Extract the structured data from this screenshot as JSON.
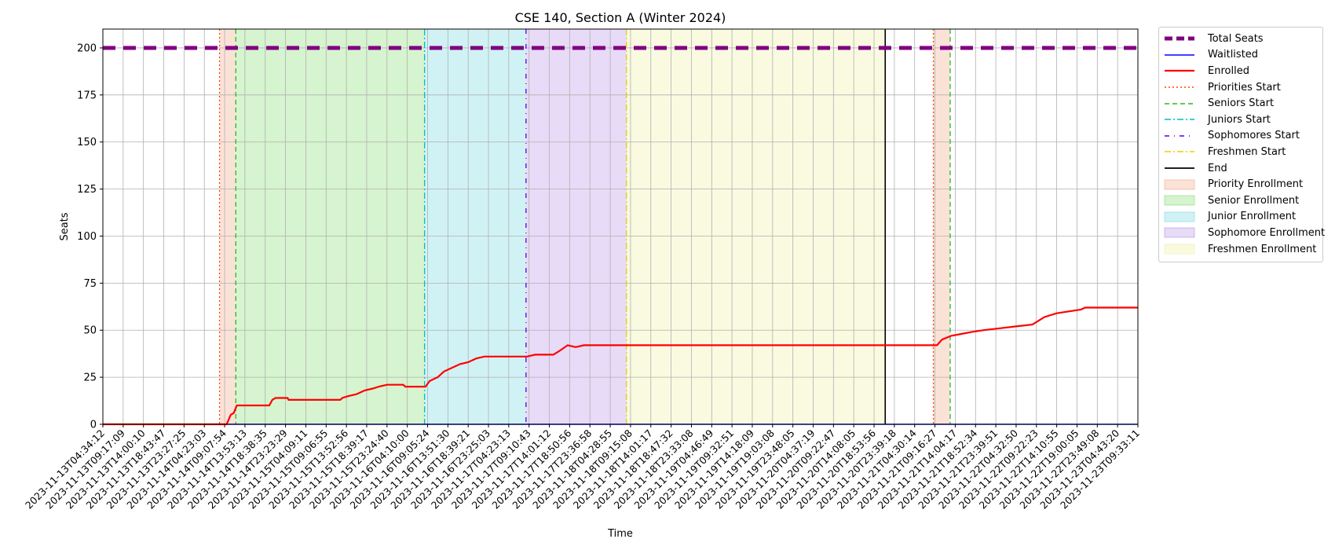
{
  "chart_data": {
    "type": "line",
    "title": "CSE 140, Section A (Winter 2024)",
    "xlabel": "Time",
    "ylabel": "Seats",
    "ylim": [
      0,
      210
    ],
    "yticks": [
      0,
      25,
      50,
      75,
      100,
      125,
      150,
      175,
      200
    ],
    "grid": true,
    "legend_position": "outside-right",
    "xticks": [
      "2023-11-13T04:34:12",
      "2023-11-13T09:17:09",
      "2023-11-13T14:00:10",
      "2023-11-13T18:43:47",
      "2023-11-13T23:27:25",
      "2023-11-14T04:23:03",
      "2023-11-14T09:07:54",
      "2023-11-14T13:53:13",
      "2023-11-14T18:38:35",
      "2023-11-14T23:23:29",
      "2023-11-15T04:09:11",
      "2023-11-15T09:06:55",
      "2023-11-15T13:52:56",
      "2023-11-15T18:39:17",
      "2023-11-15T23:24:40",
      "2023-11-16T04:10:00",
      "2023-11-16T09:05:24",
      "2023-11-16T13:51:30",
      "2023-11-16T18:39:21",
      "2023-11-16T23:25:03",
      "2023-11-17T04:23:13",
      "2023-11-17T09:10:43",
      "2023-11-17T14:01:12",
      "2023-11-17T18:50:56",
      "2023-11-17T23:36:58",
      "2023-11-18T04:28:55",
      "2023-11-18T09:15:08",
      "2023-11-18T14:01:17",
      "2023-11-18T18:47:32",
      "2023-11-18T23:33:08",
      "2023-11-19T04:46:49",
      "2023-11-19T09:32:51",
      "2023-11-19T14:18:09",
      "2023-11-19T19:03:08",
      "2023-11-19T23:48:05",
      "2023-11-20T04:37:19",
      "2023-11-20T09:22:47",
      "2023-11-20T14:08:05",
      "2023-11-20T18:53:56",
      "2023-11-20T23:39:18",
      "2023-11-21T04:30:14",
      "2023-11-21T09:16:27",
      "2023-11-21T14:04:17",
      "2023-11-21T18:52:34",
      "2023-11-21T23:39:51",
      "2023-11-22T04:32:50",
      "2023-11-22T09:22:23",
      "2023-11-22T14:10:55",
      "2023-11-22T19:00:05",
      "2023-11-22T23:49:08",
      "2023-11-23T04:43:20",
      "2023-11-23T09:33:11"
    ],
    "series": [
      {
        "name": "Total Seats",
        "color": "#800080",
        "style": "dashed",
        "points": [
          [
            0,
            200
          ],
          [
            51,
            200
          ]
        ]
      },
      {
        "name": "Waitlisted",
        "color": "#0000ff",
        "style": "solid",
        "points": [
          [
            0,
            0
          ],
          [
            51,
            0
          ]
        ]
      },
      {
        "name": "Enrolled",
        "color": "#ff0000",
        "style": "solid",
        "points": [
          [
            0,
            0
          ],
          [
            6.1,
            0
          ],
          [
            6.3,
            5
          ],
          [
            6.45,
            6
          ],
          [
            6.6,
            10
          ],
          [
            8.2,
            10
          ],
          [
            8.35,
            13
          ],
          [
            8.5,
            14
          ],
          [
            9.1,
            14
          ],
          [
            9.15,
            13
          ],
          [
            11.7,
            13
          ],
          [
            11.8,
            14
          ],
          [
            12.1,
            15
          ],
          [
            12.5,
            16
          ],
          [
            12.9,
            18
          ],
          [
            13.3,
            19
          ],
          [
            13.6,
            20
          ],
          [
            14.0,
            21
          ],
          [
            14.8,
            21
          ],
          [
            14.9,
            20
          ],
          [
            15.9,
            20
          ],
          [
            16.1,
            23
          ],
          [
            16.5,
            25
          ],
          [
            16.8,
            28
          ],
          [
            17.2,
            30
          ],
          [
            17.6,
            32
          ],
          [
            18.0,
            33
          ],
          [
            18.4,
            35
          ],
          [
            18.8,
            36
          ],
          [
            20.9,
            36
          ],
          [
            21.3,
            37
          ],
          [
            22.2,
            37
          ],
          [
            22.5,
            39
          ],
          [
            22.9,
            42
          ],
          [
            23.3,
            41
          ],
          [
            23.7,
            42
          ],
          [
            41.1,
            42
          ],
          [
            41.35,
            45
          ],
          [
            41.8,
            47
          ],
          [
            42.3,
            48
          ],
          [
            42.8,
            49
          ],
          [
            43.4,
            50
          ],
          [
            44.2,
            51
          ],
          [
            45.0,
            52
          ],
          [
            45.8,
            53
          ],
          [
            46.4,
            57
          ],
          [
            47.0,
            59
          ],
          [
            47.6,
            60
          ],
          [
            48.2,
            61
          ],
          [
            48.4,
            62
          ],
          [
            51,
            62
          ]
        ]
      }
    ],
    "phase_markers": [
      {
        "name": "Priorities Start",
        "color": "#ff4500",
        "style": "dotted",
        "x": [
          5.75,
          40.92
        ]
      },
      {
        "name": "Seniors Start",
        "color": "#22bb22",
        "style": "dashed",
        "x": [
          6.55,
          41.75
        ]
      },
      {
        "name": "Juniors Start",
        "color": "#00bfbf",
        "style": "dashdot",
        "x": [
          15.85
        ]
      },
      {
        "name": "Sophomores Start",
        "color": "#5500dd",
        "style": "loose-dashdot",
        "x": [
          20.85
        ]
      },
      {
        "name": "Freshmen Start",
        "color": "#e6d000",
        "style": "dashdot",
        "x": [
          25.8
        ]
      },
      {
        "name": "End",
        "color": "#000000",
        "style": "solid",
        "x": [
          38.55
        ]
      }
    ],
    "phase_spans": [
      {
        "name": "Priority Enrollment",
        "color": "#f4a582",
        "ranges": [
          [
            5.75,
            6.55
          ],
          [
            40.92,
            41.75
          ]
        ]
      },
      {
        "name": "Senior Enrollment",
        "color": "#7fdc6a",
        "ranges": [
          [
            6.55,
            15.85
          ]
        ]
      },
      {
        "name": "Junior Enrollment",
        "color": "#6fd8df",
        "ranges": [
          [
            15.85,
            20.85
          ]
        ]
      },
      {
        "name": "Sophomore Enrollment",
        "color": "#b48ee6",
        "ranges": [
          [
            20.85,
            25.8
          ]
        ]
      },
      {
        "name": "Freshmen Enrollment",
        "color": "#ecf0a0",
        "ranges": [
          [
            25.8,
            38.55
          ]
        ]
      }
    ]
  }
}
